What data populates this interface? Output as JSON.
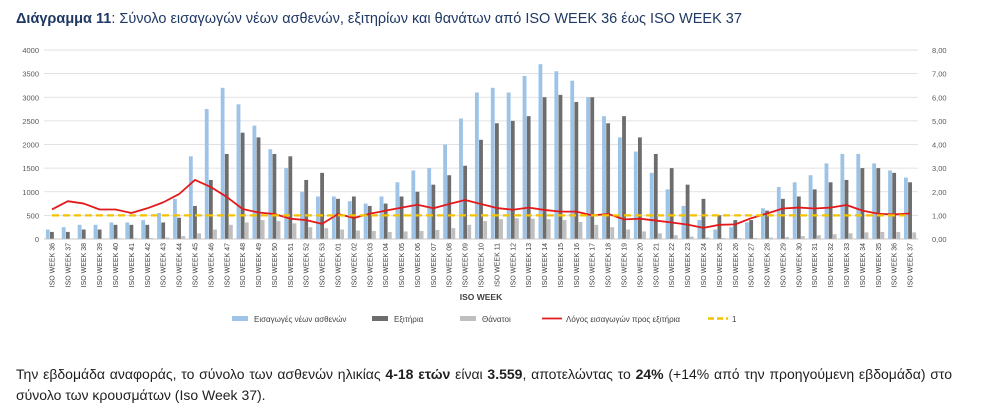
{
  "title": {
    "lead": "Διάγραμμα 11",
    "text": ": Σύνολο εισαγωγών νέων ασθενών, εξιτηρίων και θανάτων από ISO WEEK 36 έως ISO WEEK 37"
  },
  "chart_data": {
    "type": "bar",
    "xlabel": "ISO WEEK",
    "ylim": [
      0,
      4000
    ],
    "y2lim": [
      0,
      8
    ],
    "yticks": [
      "0",
      "500",
      "1000",
      "1500",
      "2000",
      "2500",
      "3000",
      "3500",
      "4000"
    ],
    "y2ticks": [
      "0,00",
      "1,00",
      "2,00",
      "3,00",
      "4,00",
      "5,00",
      "6,00",
      "7,00",
      "8,00"
    ],
    "grid": true,
    "legend_position": "bottom",
    "categories": [
      "ISO WEEK 36",
      "ISO WEEK 37",
      "ISO WEEK 38",
      "ISO WEEK 39",
      "ISO WEEK 40",
      "ISO WEEK 41",
      "ISO WEEK 42",
      "ISO WEEK 43",
      "ISO WEEK 44",
      "ISO WEEK 45",
      "ISO WEEK 46",
      "ISO WEEK 47",
      "ISO WEEK 48",
      "ISO WEEK 49",
      "ISO WEEK 50",
      "ISO WEEK 51",
      "ISO WEEK 52",
      "ISO WEEK 53",
      "ISO WEEK 01",
      "ISO WEEK 02",
      "ISO WEEK 03",
      "ISO WEEK 04",
      "ISO WEEK 05",
      "ISO WEEK 06",
      "ISO WEEK 07",
      "ISO WEEK 08",
      "ISO WEEK 09",
      "ISO WEEK 10",
      "ISO WEEK 11",
      "ISO WEEK 12",
      "ISO WEEK 13",
      "ISO WEEK 14",
      "ISO WEEK 15",
      "ISO WEEK 16",
      "ISO WEEK 17",
      "ISO WEEK 18",
      "ISO WEEK 19",
      "ISO WEEK 20",
      "ISO WEEK 21",
      "ISO WEEK 22",
      "ISO WEEK 23",
      "ISO WEEK 24",
      "ISO WEEK 25",
      "ISO WEEK 26",
      "ISO WEEK 27",
      "ISO WEEK 28",
      "ISO WEEK 29",
      "ISO WEEK 30",
      "ISO WEEK 31",
      "ISO WEEK 32",
      "ISO WEEK 33",
      "ISO WEEK 34",
      "ISO WEEK 35",
      "ISO WEEK 36",
      "ISO WEEK 37"
    ],
    "series": [
      {
        "name": "Εισαγωγές νέων ασθενών",
        "kind": "bar",
        "axis": "left",
        "color": "#9dc3e6",
        "values": [
          200,
          250,
          300,
          300,
          350,
          350,
          400,
          550,
          850,
          1750,
          2750,
          3200,
          2850,
          2400,
          1900,
          1500,
          1000,
          900,
          900,
          800,
          750,
          900,
          1200,
          1450,
          1500,
          2000,
          2550,
          3100,
          3200,
          3100,
          3450,
          3700,
          3550,
          3350,
          3000,
          2600,
          2150,
          1850,
          1400,
          1050,
          700,
          400,
          200,
          250,
          350,
          650,
          1100,
          1200,
          1350,
          1600,
          1800,
          1800,
          1600,
          1450,
          1300
        ]
      },
      {
        "name": "Εξιτήρια",
        "kind": "bar",
        "axis": "left",
        "color": "#6d6d6d",
        "values": [
          150,
          150,
          200,
          200,
          300,
          300,
          300,
          350,
          450,
          700,
          1250,
          1800,
          2250,
          2150,
          1800,
          1750,
          1250,
          1400,
          850,
          900,
          700,
          750,
          900,
          1000,
          1150,
          1350,
          1550,
          2100,
          2450,
          2500,
          2600,
          3000,
          3050,
          2900,
          3000,
          2450,
          2600,
          2150,
          1800,
          1500,
          1150,
          850,
          500,
          400,
          400,
          600,
          850,
          900,
          1050,
          1200,
          1250,
          1500,
          1500,
          1400,
          1200
        ]
      },
      {
        "name": "Θάνατοι",
        "kind": "bar",
        "axis": "left",
        "color": "#bfbfbf",
        "values": [
          10,
          10,
          10,
          10,
          15,
          15,
          20,
          30,
          60,
          120,
          200,
          300,
          350,
          400,
          380,
          330,
          250,
          230,
          200,
          180,
          170,
          150,
          160,
          170,
          190,
          230,
          300,
          380,
          420,
          440,
          430,
          420,
          400,
          360,
          300,
          250,
          200,
          160,
          120,
          80,
          50,
          30,
          20,
          20,
          20,
          30,
          40,
          60,
          80,
          100,
          120,
          140,
          150,
          150,
          140
        ]
      },
      {
        "name": "Λόγος εισαγωγών προς εξιτήρια",
        "kind": "line",
        "axis": "right",
        "color": "#e31a1c",
        "values": [
          1.25,
          1.6,
          1.5,
          1.25,
          1.25,
          1.1,
          1.3,
          1.55,
          1.9,
          2.5,
          2.2,
          1.78,
          1.27,
          1.12,
          1.06,
          0.86,
          0.8,
          0.64,
          1.06,
          0.89,
          1.07,
          1.2,
          1.33,
          1.45,
          1.3,
          1.48,
          1.65,
          1.48,
          1.31,
          1.24,
          1.33,
          1.23,
          1.16,
          1.16,
          1.0,
          1.06,
          0.83,
          0.86,
          0.78,
          0.7,
          0.61,
          0.47,
          0.6,
          0.62,
          0.88,
          1.08,
          1.29,
          1.33,
          1.29,
          1.33,
          1.44,
          1.2,
          1.07,
          1.04,
          1.08
        ]
      },
      {
        "name": "1",
        "kind": "line",
        "axis": "right",
        "color": "#f5c200",
        "dashed": true,
        "values": [
          1,
          1,
          1,
          1,
          1,
          1,
          1,
          1,
          1,
          1,
          1,
          1,
          1,
          1,
          1,
          1,
          1,
          1,
          1,
          1,
          1,
          1,
          1,
          1,
          1,
          1,
          1,
          1,
          1,
          1,
          1,
          1,
          1,
          1,
          1,
          1,
          1,
          1,
          1,
          1,
          1,
          1,
          1,
          1,
          1,
          1,
          1,
          1,
          1,
          1,
          1,
          1,
          1,
          1,
          1
        ]
      }
    ]
  },
  "paragraph": {
    "p1": "Την εβδομάδα αναφοράς, το σύνολο των ασθενών ηλικίας ",
    "b1": "4-18 ετών",
    "p2": " είναι ",
    "b2": "3.559",
    "p3": ", αποτελώντας το ",
    "b3": "24%",
    "p4": " (+14% από την προηγούμενη εβδομάδα) στο σύνολο των κρουσμάτων (Iso Week 37)."
  }
}
